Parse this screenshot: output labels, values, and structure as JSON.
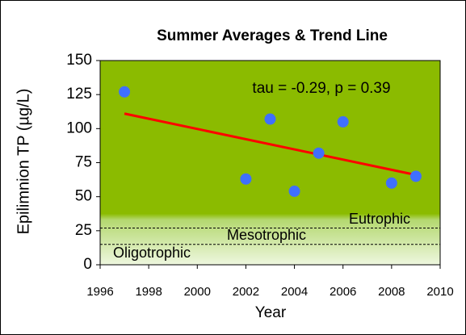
{
  "chart_data": {
    "type": "scatter",
    "title": "Summer Averages  & Trend Line",
    "annotation": "tau = -0.29,  p = 0.39",
    "xlabel": "Year",
    "ylabel": "Epilimnion TP (µg/L)",
    "x": [
      1997,
      2002,
      2003,
      2004,
      2005,
      2006,
      2008,
      2009
    ],
    "series": [
      {
        "color": "#3f6fff",
        "values": [
          127,
          63,
          107,
          54,
          82,
          105,
          60,
          65
        ]
      }
    ],
    "trend": {
      "x": [
        1997,
        2009
      ],
      "values": [
        111,
        66
      ],
      "color": "#ff0000"
    },
    "boundaries": [
      27,
      15
    ],
    "zone_labels": [
      "Eutrophic",
      "Mesotrophic",
      "Oligotrophic"
    ],
    "xlim": [
      1996,
      2010
    ],
    "xticks": [
      1996,
      1998,
      2000,
      2002,
      2004,
      2006,
      2008,
      2010
    ],
    "ylim": [
      0,
      150
    ],
    "yticks": [
      0,
      25,
      50,
      75,
      100,
      125,
      150
    ]
  }
}
